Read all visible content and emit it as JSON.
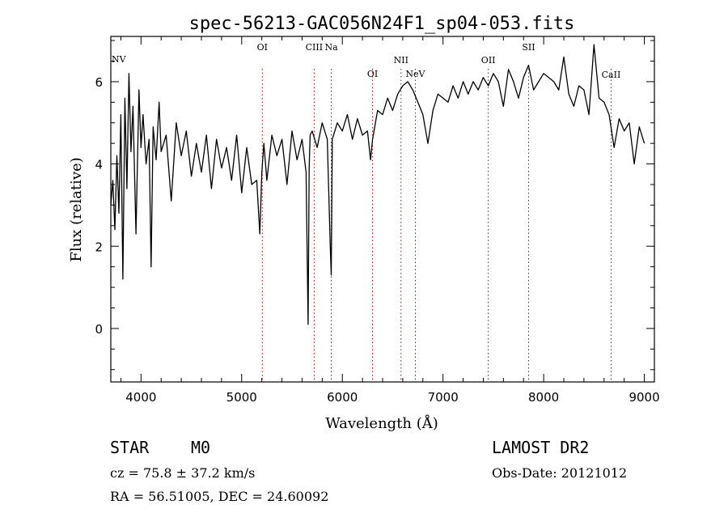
{
  "chart_data": {
    "type": "line",
    "title": "spec-56213-GAC056N24F1_sp04-053.fits",
    "xlabel": "Wavelength (Å)",
    "ylabel": "Flux (relative)",
    "xlim": [
      3700,
      9100
    ],
    "ylim": [
      -1.3,
      7.1
    ],
    "xticks": [
      4000,
      5000,
      6000,
      7000,
      8000,
      9000
    ],
    "yticks": [
      0,
      2,
      4,
      6
    ],
    "grid": false,
    "series": [
      {
        "x": [
          3700,
          3720,
          3740,
          3760,
          3780,
          3800,
          3820,
          3840,
          3860,
          3880,
          3900,
          3920,
          3950,
          3980,
          4000,
          4020,
          4050,
          4080,
          4100,
          4120,
          4150,
          4180,
          4200,
          4250,
          4300,
          4350,
          4400,
          4450,
          4500,
          4550,
          4600,
          4650,
          4700,
          4750,
          4800,
          4850,
          4900,
          4950,
          5000,
          5050,
          5100,
          5150,
          5180,
          5200,
          5220,
          5250,
          5300,
          5350,
          5400,
          5450,
          5500,
          5550,
          5600,
          5640,
          5660,
          5670,
          5680,
          5700,
          5750,
          5800,
          5850,
          5880,
          5890,
          5900,
          5950,
          6000,
          6050,
          6100,
          6150,
          6200,
          6250,
          6280,
          6300,
          6350,
          6400,
          6450,
          6500,
          6550,
          6600,
          6650,
          6700,
          6750,
          6800,
          6850,
          6900,
          6950,
          7000,
          7050,
          7100,
          7150,
          7200,
          7250,
          7300,
          7350,
          7400,
          7450,
          7500,
          7550,
          7600,
          7650,
          7700,
          7750,
          7800,
          7850,
          7900,
          7950,
          8000,
          8050,
          8100,
          8150,
          8200,
          8250,
          8300,
          8350,
          8400,
          8450,
          8500,
          8550,
          8600,
          8650,
          8700,
          8750,
          8800,
          8850,
          8900,
          8950,
          9000
        ],
        "y": [
          3.0,
          3.6,
          2.4,
          4.2,
          2.8,
          5.2,
          1.2,
          5.6,
          3.4,
          6.2,
          4.3,
          5.4,
          2.3,
          5.8,
          4.4,
          5.2,
          4.0,
          4.6,
          1.5,
          4.9,
          4.1,
          5.5,
          4.3,
          4.7,
          3.1,
          5.0,
          4.2,
          4.8,
          3.7,
          4.5,
          3.8,
          4.7,
          3.4,
          4.6,
          3.9,
          4.4,
          3.6,
          4.7,
          3.3,
          4.4,
          3.5,
          3.6,
          2.3,
          3.8,
          4.5,
          3.6,
          4.7,
          4.2,
          4.6,
          3.5,
          4.8,
          4.1,
          4.6,
          3.8,
          0.1,
          3.9,
          4.7,
          4.8,
          4.4,
          5.0,
          4.6,
          2.0,
          1.3,
          4.6,
          5.0,
          4.8,
          5.2,
          4.6,
          5.1,
          4.7,
          4.8,
          4.1,
          4.6,
          5.3,
          5.2,
          5.6,
          5.3,
          5.7,
          5.9,
          6.0,
          5.8,
          5.5,
          5.2,
          4.5,
          5.3,
          5.7,
          5.6,
          5.5,
          5.9,
          5.6,
          6.0,
          5.7,
          6.0,
          5.8,
          6.1,
          5.9,
          6.2,
          6.0,
          5.4,
          6.3,
          6.0,
          5.6,
          6.1,
          6.4,
          5.8,
          6.0,
          6.2,
          6.1,
          6.0,
          5.8,
          6.6,
          5.7,
          5.4,
          5.9,
          5.8,
          5.2,
          6.9,
          5.6,
          5.5,
          5.2,
          4.4,
          5.1,
          4.8,
          5.0,
          4.0,
          4.9,
          4.5
        ]
      }
    ],
    "annotations": [
      {
        "label": "NV",
        "x": 3746
      },
      {
        "label": "OI",
        "x": 5205
      },
      {
        "label": "CIII",
        "x": 5720
      },
      {
        "label": "Na",
        "x": 5890
      },
      {
        "label": "OI",
        "x": 6300
      },
      {
        "label": "NII",
        "x": 6583
      },
      {
        "label": "NeV",
        "x": 6725
      },
      {
        "label": "OII",
        "x": 7450
      },
      {
        "label": "SII",
        "x": 7850
      },
      {
        "label": "CaII",
        "x": 8670
      }
    ]
  },
  "info": {
    "object_class": "STAR",
    "subclass": "M0",
    "cz": "cz = 75.8 ± 37.2 km/s",
    "coords": "RA =  56.51005, DEC =  24.60092",
    "survey": "LAMOST DR2",
    "obs_date": "Obs-Date: 20121012"
  }
}
